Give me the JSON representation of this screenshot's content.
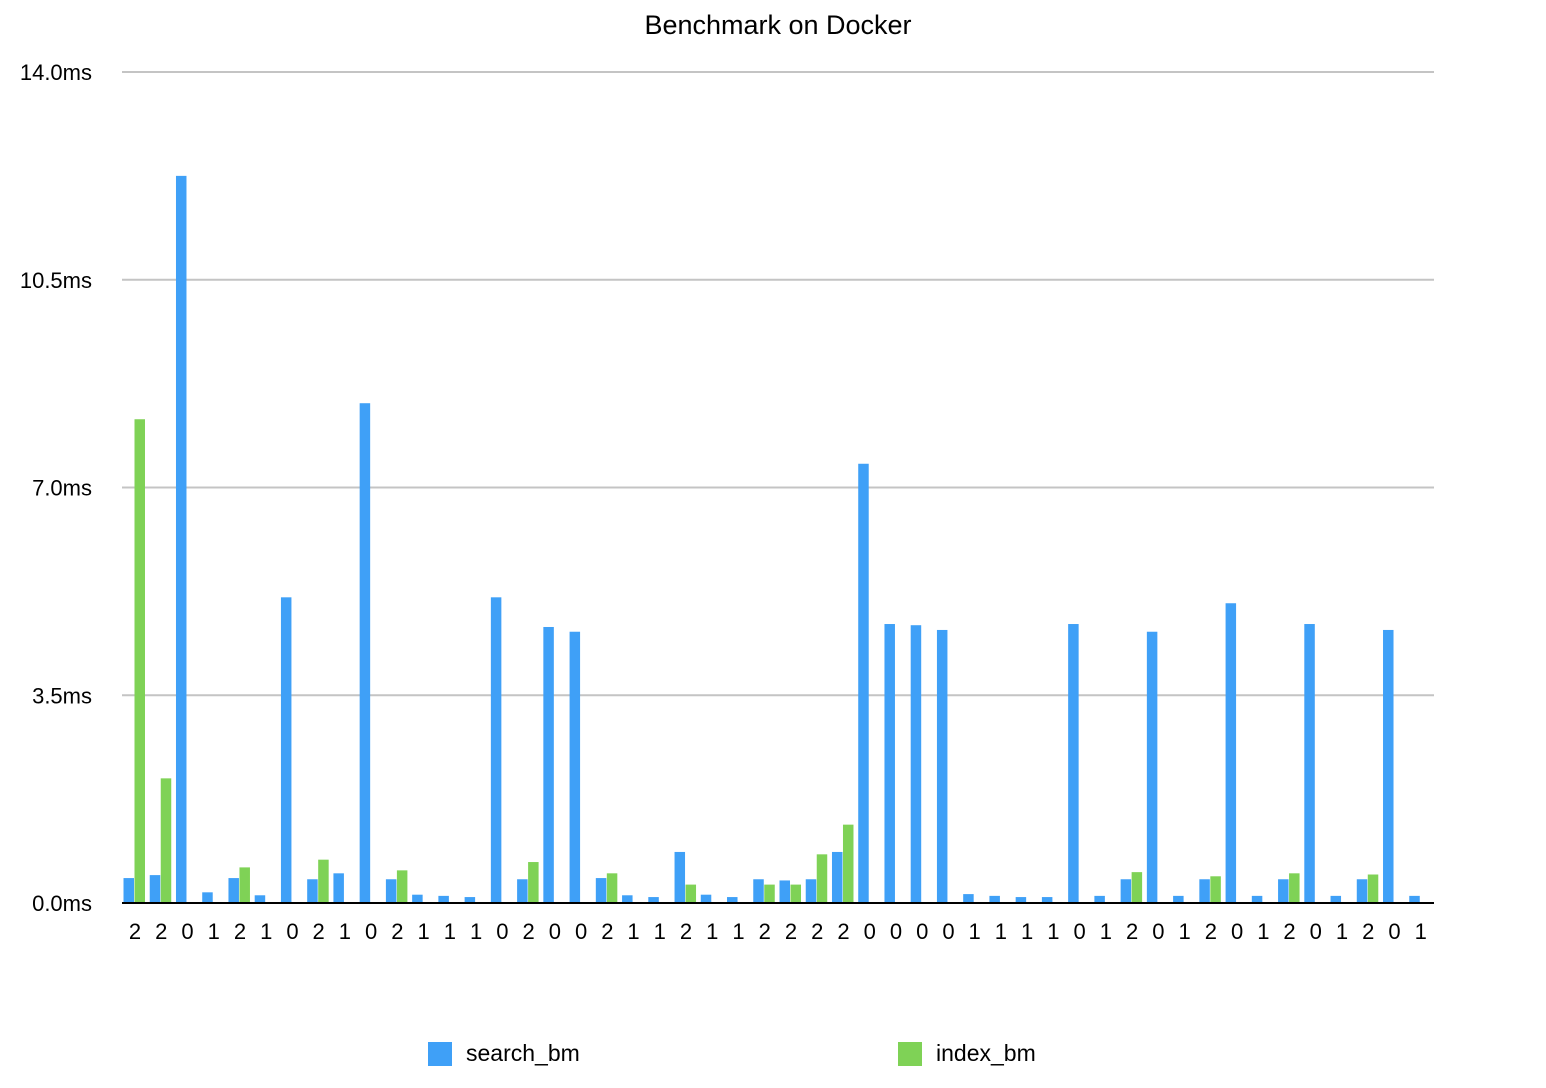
{
  "chart_data": {
    "type": "bar",
    "title": "Benchmark on Docker",
    "xlabel": "",
    "ylabel": "",
    "ylim": [
      0,
      14
    ],
    "yticks": [
      "0.0ms",
      "3.5ms",
      "7.0ms",
      "10.5ms",
      "14.0ms"
    ],
    "grid": true,
    "legend_position": "bottom",
    "categories": [
      "2",
      "2",
      "0",
      "1",
      "2",
      "1",
      "0",
      "2",
      "1",
      "0",
      "2",
      "1",
      "1",
      "1",
      "0",
      "2",
      "0",
      "0",
      "2",
      "1",
      "1",
      "2",
      "1",
      "1",
      "2",
      "2",
      "2",
      "2",
      "0",
      "0",
      "0",
      "0",
      "1",
      "1",
      "1",
      "1",
      "0",
      "1",
      "2",
      "0",
      "1",
      "2",
      "0",
      "1",
      "2",
      "0",
      "1",
      "2",
      "0",
      "1"
    ],
    "series": [
      {
        "name": "search_bm",
        "color": "#3fa0f7",
        "values": [
          0.42,
          0.47,
          12.25,
          0.18,
          0.42,
          0.13,
          5.15,
          0.4,
          0.5,
          8.42,
          0.4,
          0.14,
          0.12,
          0.1,
          5.15,
          0.4,
          4.65,
          4.57,
          0.42,
          0.13,
          0.1,
          0.86,
          0.14,
          0.1,
          0.4,
          0.38,
          0.4,
          0.86,
          7.4,
          4.7,
          4.68,
          4.6,
          0.15,
          0.12,
          0.1,
          0.1,
          4.7,
          0.12,
          0.4,
          4.57,
          0.12,
          0.4,
          5.05,
          0.12,
          0.4,
          4.7,
          0.12,
          0.4,
          4.6,
          0.12
        ]
      },
      {
        "name": "index_bm",
        "color": "#7fd256",
        "values": [
          8.15,
          2.1,
          0,
          0,
          0.6,
          0,
          0,
          0.73,
          0,
          0,
          0.55,
          0,
          0,
          0,
          0,
          0.69,
          0,
          0,
          0.5,
          0,
          0,
          0.31,
          0,
          0,
          0.31,
          0.31,
          0.82,
          1.32,
          0,
          0,
          0,
          0,
          0,
          0,
          0,
          0,
          0,
          0,
          0.52,
          0,
          0,
          0.45,
          0,
          0,
          0.5,
          0,
          0,
          0.48,
          0,
          0
        ]
      }
    ]
  }
}
